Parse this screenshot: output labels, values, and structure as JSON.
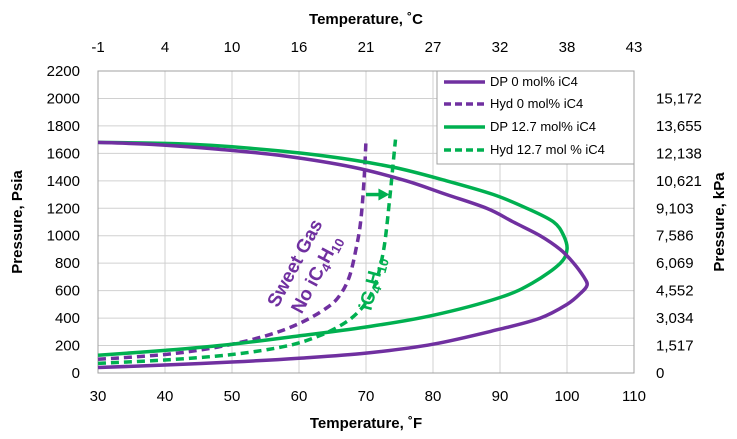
{
  "chart_data": {
    "type": "line",
    "xlabel_bottom": "Temperature, ˚F",
    "xlabel_top": "Temperature, ˚C",
    "ylabel_left": "Pressure, Psia",
    "ylabel_right": "Pressure, kPa",
    "xlim": [
      30,
      110
    ],
    "ylim": [
      0,
      2200
    ],
    "x_ticks": [
      30,
      40,
      50,
      60,
      70,
      80,
      90,
      100,
      110
    ],
    "y_ticks": [
      0,
      200,
      400,
      600,
      800,
      1000,
      1200,
      1400,
      1600,
      1800,
      2000,
      2200
    ],
    "top_ticks": [
      "-1",
      "4",
      "10",
      "16",
      "21",
      "27",
      "32",
      "38",
      "43"
    ],
    "right_ticks": [
      "0",
      "1,517",
      "3,034",
      "4,552",
      "6,069",
      "7,586",
      "9,103",
      "10,621",
      "12,138",
      "13,655",
      "15,172"
    ],
    "grid": true,
    "legend_position": "top-right",
    "colors": {
      "purple": "#7030a0",
      "green": "#00b050"
    },
    "series": [
      {
        "name": "DP 0 mol% iC4",
        "color": "#7030a0",
        "dash": false,
        "points": [
          [
            30,
            40
          ],
          [
            40,
            58
          ],
          [
            50,
            80
          ],
          [
            60,
            108
          ],
          [
            70,
            145
          ],
          [
            80,
            210
          ],
          [
            90,
            320
          ],
          [
            96,
            400
          ],
          [
            100,
            500
          ],
          [
            102,
            580
          ],
          [
            103,
            640
          ],
          [
            102.5,
            700
          ],
          [
            101,
            800
          ],
          [
            99,
            900
          ],
          [
            96,
            1000
          ],
          [
            92,
            1100
          ],
          [
            88,
            1200
          ],
          [
            82,
            1300
          ],
          [
            76,
            1400
          ],
          [
            68,
            1500
          ],
          [
            58,
            1580
          ],
          [
            48,
            1630
          ],
          [
            38,
            1665
          ],
          [
            30,
            1680
          ]
        ]
      },
      {
        "name": "Hyd 0 mol% iC4",
        "color": "#7030a0",
        "dash": true,
        "points": [
          [
            30,
            100
          ],
          [
            40,
            135
          ],
          [
            48,
            190
          ],
          [
            55,
            270
          ],
          [
            60,
            360
          ],
          [
            64,
            470
          ],
          [
            66,
            560
          ],
          [
            67.5,
            700
          ],
          [
            68.5,
            900
          ],
          [
            69.2,
            1100
          ],
          [
            69.7,
            1400
          ],
          [
            70,
            1700
          ]
        ]
      },
      {
        "name": "DP 12.7 mol% iC4",
        "color": "#00b050",
        "dash": false,
        "points": [
          [
            30,
            130
          ],
          [
            40,
            165
          ],
          [
            50,
            210
          ],
          [
            60,
            270
          ],
          [
            70,
            335
          ],
          [
            80,
            420
          ],
          [
            90,
            550
          ],
          [
            95,
            660
          ],
          [
            99,
            800
          ],
          [
            100,
            900
          ],
          [
            99.5,
            1000
          ],
          [
            98,
            1100
          ],
          [
            94,
            1200
          ],
          [
            89,
            1300
          ],
          [
            82,
            1400
          ],
          [
            74,
            1500
          ],
          [
            64,
            1580
          ],
          [
            52,
            1640
          ],
          [
            42,
            1670
          ],
          [
            30,
            1680
          ]
        ]
      },
      {
        "name": "Hyd 12.7 mol % iC4",
        "color": "#00b050",
        "dash": true,
        "points": [
          [
            30,
            70
          ],
          [
            40,
            95
          ],
          [
            50,
            135
          ],
          [
            58,
            195
          ],
          [
            63,
            270
          ],
          [
            67,
            370
          ],
          [
            69.5,
            480
          ],
          [
            71,
            600
          ],
          [
            72,
            750
          ],
          [
            72.8,
            950
          ],
          [
            73.5,
            1250
          ],
          [
            74,
            1500
          ],
          [
            74.4,
            1700
          ]
        ]
      }
    ],
    "annotations": [
      {
        "text_line1": "Sweet Gas",
        "text_line2": "No iC",
        "sub1": "4",
        "mid": "H",
        "sub2": "10",
        "color": "#7030a0"
      },
      {
        "text": "iC",
        "sub1": "4",
        "mid": "H",
        "sub2": "10",
        "color": "#00b050"
      }
    ],
    "arrow": {
      "from": [
        70,
        1300
      ],
      "to": [
        73.5,
        1300
      ],
      "color": "#00b050"
    }
  }
}
